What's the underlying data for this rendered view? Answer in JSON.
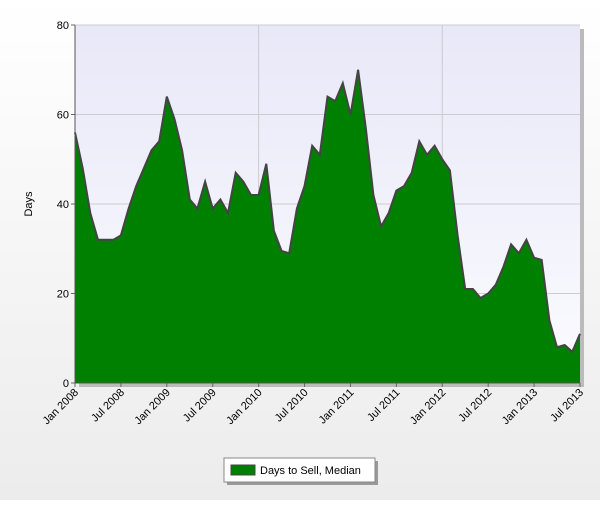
{
  "chart_data": {
    "type": "area",
    "y_label": "Days",
    "categories": [
      "Jan 2008",
      null,
      null,
      null,
      null,
      null,
      "Jul 2008",
      null,
      null,
      null,
      null,
      null,
      "Jan 2009",
      null,
      null,
      null,
      null,
      null,
      "Jul 2009",
      null,
      null,
      null,
      null,
      null,
      "Jan 2010",
      null,
      null,
      null,
      null,
      null,
      "Jul 2010",
      null,
      null,
      null,
      null,
      null,
      "Jan 2011",
      null,
      null,
      null,
      null,
      null,
      "Jul 2011",
      null,
      null,
      null,
      null,
      null,
      "Jan 2012",
      null,
      null,
      null,
      null,
      null,
      "Jul 2012",
      null,
      null,
      null,
      null,
      null,
      "Jan 2013",
      null,
      null,
      null,
      null,
      null,
      "Jul 2013"
    ],
    "series": [
      {
        "name": "Days to Sell, Median",
        "color": "#008000",
        "values": [
          56,
          48,
          38,
          32,
          32,
          32,
          33,
          39,
          44,
          48,
          52,
          54,
          64,
          59,
          52,
          41,
          39,
          45,
          39,
          41,
          38,
          47,
          45,
          42,
          42,
          49,
          34,
          29.5,
          29,
          39,
          44,
          53,
          51,
          64,
          63,
          67,
          60,
          70,
          57,
          42,
          35,
          38,
          43,
          44,
          47,
          54,
          51,
          53,
          50,
          47.5,
          33,
          21,
          21,
          19,
          20,
          22,
          26,
          31,
          29,
          32,
          28,
          27.5,
          14,
          8,
          8.5,
          7,
          11
        ]
      }
    ],
    "ylim": [
      0,
      80
    ],
    "yticks": [
      0,
      20,
      40,
      60,
      80
    ],
    "grid": true
  }
}
